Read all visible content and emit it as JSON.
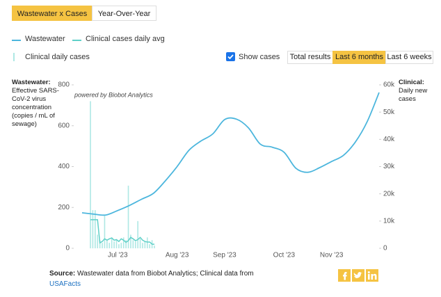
{
  "tabs": [
    "Wastewater x Cases",
    "Year-Over-Year"
  ],
  "controls": {
    "show_cases": "Show cases",
    "ranges": [
      "Total results",
      "Last 6 months",
      "Last 6 weeks"
    ]
  },
  "chart_data": {
    "type": "line",
    "annotation": "powered by Biobot Analytics",
    "y_label": {
      "title": "Wastewater:",
      "text": "Effective SARS-CoV-2 virus concentration (copies / mL of sewage)"
    },
    "y2_label": {
      "title": "Clinical:",
      "text": "Daily new cases"
    },
    "categories": [
      null,
      null,
      null,
      "Jul '23",
      null,
      null,
      null,
      null,
      "Aug '23",
      null,
      null,
      null,
      "Sep '23",
      null,
      null,
      null,
      null,
      "Oct '23",
      null,
      null,
      null,
      "Nov '23",
      null,
      null,
      null,
      null
    ],
    "ylim": [
      0,
      800
    ],
    "yticks": [
      0,
      200,
      400,
      600,
      800
    ],
    "y2lim": [
      0,
      60000
    ],
    "y2ticks": [
      0,
      {
        "value": 10000,
        "label": "10k"
      },
      {
        "value": 20000,
        "label": "20k"
      },
      {
        "value": 30000,
        "label": "30k"
      },
      {
        "value": 40000,
        "label": "40k"
      },
      {
        "value": 50000,
        "label": "50k"
      },
      {
        "value": 60000,
        "label": "60k"
      }
    ],
    "series": [
      {
        "name": "Wastewater",
        "color": "#4cb6dd",
        "values": [
          174,
          167,
          163,
          185,
          210,
          240,
          269,
          330,
          400,
          480,
          525,
          560,
          630,
          632,
          590,
          510,
          495,
          470,
          392,
          372,
          395,
          425,
          455,
          520,
          620,
          763
        ]
      }
    ],
    "daily": {
      "series": [
        {
          "name": "Clinical cases daily avg",
          "color": "#5fd0c8",
          "type": "line",
          "axis": "y2",
          "values": [
            10500,
            10500,
            10500,
            10500,
            2000,
            2500,
            3500,
            3000,
            3500,
            3800,
            3000,
            3200,
            2500,
            3500,
            3000,
            2200,
            2800,
            4000,
            3500,
            2800,
            3200,
            4000,
            3000,
            2500,
            2300,
            2300,
            1500,
            1500
          ]
        },
        {
          "name": "Clinical daily cases",
          "color": "#aee8e4",
          "type": "bar",
          "axis": "y2",
          "values": [
            54000,
            14000,
            14000,
            5000,
            3000,
            2000,
            12000,
            3000,
            2000,
            4000,
            2500,
            3000,
            1500,
            2000,
            4000,
            3000,
            23000,
            5000,
            3000,
            2500,
            10000,
            3500,
            2000,
            2500,
            4000,
            1500,
            3000,
            1000
          ]
        }
      ]
    }
  },
  "source": {
    "label": "Source:",
    "text": "Wastewater data from Biobot Analytics; Clinical data from",
    "link": "USAFacts"
  }
}
